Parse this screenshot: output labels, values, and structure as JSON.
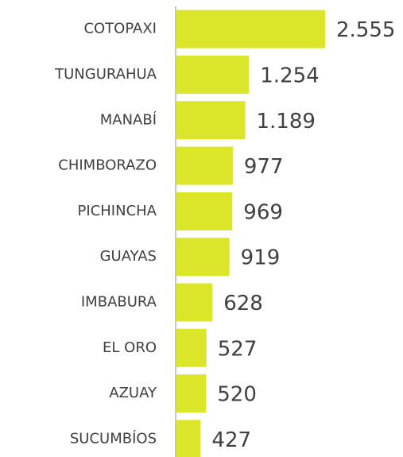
{
  "chart_data": {
    "type": "bar",
    "orientation": "horizontal",
    "categories": [
      "COTOPAXI",
      "TUNGURAHUA",
      "MANABÍ",
      "CHIMBORAZO",
      "PICHINCHA",
      "GUAYAS",
      "IMBABURA",
      "EL ORO",
      "AZUAY",
      "SUCUMBÍOS"
    ],
    "values": [
      2555,
      1254,
      1189,
      977,
      969,
      919,
      628,
      527,
      520,
      427
    ],
    "value_labels": [
      "2.555",
      "1.254",
      "1.189",
      "977",
      "969",
      "919",
      "628",
      "527",
      "520",
      "427"
    ],
    "color": "#dbe52a"
  }
}
